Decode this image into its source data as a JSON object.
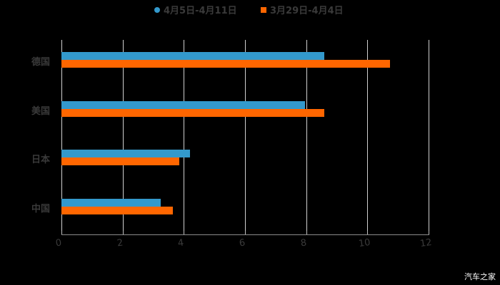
{
  "chart_data": {
    "type": "bar",
    "orientation": "horizontal",
    "title": "",
    "xlabel": "",
    "ylabel": "",
    "categories": [
      "德国",
      "美国",
      "日本",
      "中国"
    ],
    "series": [
      {
        "name": "4月5日-4月11日",
        "color": "#3399cc",
        "values": [
          8.6,
          7.95,
          4.2,
          3.25
        ]
      },
      {
        "name": "3月29日-4月4日",
        "color": "#ff6600",
        "values": [
          10.75,
          8.6,
          3.85,
          3.65
        ]
      }
    ],
    "xlim": [
      0,
      12
    ],
    "xticks": [
      "0",
      "2",
      "4",
      "6",
      "8",
      "10",
      "12"
    ],
    "grid": true,
    "legend_position": "top"
  },
  "legend": [
    {
      "label": "4月5日-4月11日",
      "color": "#3399cc",
      "marker": "circle"
    },
    {
      "label": "3月29日-4月4日",
      "color": "#ff6600",
      "marker": "square"
    }
  ],
  "watermark": "汽车之家"
}
